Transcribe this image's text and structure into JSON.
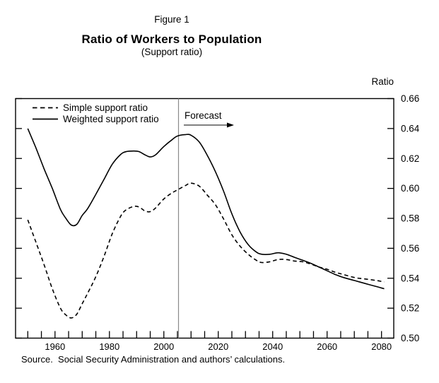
{
  "header": {
    "figure_label": "Figure 1",
    "title": "Ratio of Workers to Population",
    "subtitle": "(Support ratio)"
  },
  "axis_unit_label": "Ratio",
  "legend": {
    "simple_label": "Simple support ratio",
    "weighted_label": "Weighted support ratio"
  },
  "forecast_label": "Forecast",
  "source": "Source.  Social Security Administration and authors’ calculations.",
  "colors": {
    "line": "#000000",
    "forecast_divider": "#8a8a8a",
    "background": "#ffffff"
  },
  "chart_data": {
    "type": "line",
    "title": "Ratio of Workers to Population",
    "subtitle": "(Support ratio)",
    "ylabel": "Ratio",
    "grid": false,
    "legend_position": "top-left-inside",
    "x_domain": [
      1945.5,
      2084.5
    ],
    "ylim": [
      0.5,
      0.66
    ],
    "y_ticks": [
      0.5,
      0.52,
      0.54,
      0.56,
      0.58,
      0.6,
      0.62,
      0.64,
      0.66
    ],
    "x_tick_start": 1950,
    "x_tick_end": 2080,
    "x_tick_step": 5,
    "x_label_ticks": [
      1960,
      1980,
      2000,
      2020,
      2040,
      2060,
      2080
    ],
    "forecast_start": 2005,
    "series": [
      {
        "name": "Simple support ratio",
        "style": "dashed",
        "points": [
          [
            1950,
            0.579
          ],
          [
            1953,
            0.564
          ],
          [
            1956,
            0.549
          ],
          [
            1959,
            0.533
          ],
          [
            1962,
            0.52
          ],
          [
            1964,
            0.5155
          ],
          [
            1966,
            0.5135
          ],
          [
            1968,
            0.516
          ],
          [
            1970,
            0.523
          ],
          [
            1972,
            0.53
          ],
          [
            1975,
            0.541
          ],
          [
            1978,
            0.5545
          ],
          [
            1981,
            0.5695
          ],
          [
            1984,
            0.581
          ],
          [
            1986,
            0.5855
          ],
          [
            1989,
            0.588
          ],
          [
            1991,
            0.5875
          ],
          [
            1993,
            0.585
          ],
          [
            1995,
            0.5845
          ],
          [
            1997,
            0.587
          ],
          [
            2000,
            0.593
          ],
          [
            2003,
            0.597
          ],
          [
            2005,
            0.599
          ],
          [
            2008,
            0.602
          ],
          [
            2010,
            0.6035
          ],
          [
            2013,
            0.6015
          ],
          [
            2016,
            0.5955
          ],
          [
            2019,
            0.589
          ],
          [
            2022,
            0.5795
          ],
          [
            2025,
            0.569
          ],
          [
            2028,
            0.5615
          ],
          [
            2031,
            0.556
          ],
          [
            2034,
            0.552
          ],
          [
            2036,
            0.5505
          ],
          [
            2039,
            0.551
          ],
          [
            2042,
            0.5525
          ],
          [
            2045,
            0.5525
          ],
          [
            2048,
            0.5515
          ],
          [
            2051,
            0.551
          ],
          [
            2054,
            0.5495
          ],
          [
            2057,
            0.5475
          ],
          [
            2060,
            0.546
          ],
          [
            2063,
            0.544
          ],
          [
            2066,
            0.5425
          ],
          [
            2070,
            0.5405
          ],
          [
            2074,
            0.5395
          ],
          [
            2078,
            0.5385
          ],
          [
            2081,
            0.5375
          ]
        ]
      },
      {
        "name": "Weighted support ratio",
        "style": "solid",
        "points": [
          [
            1950,
            0.64
          ],
          [
            1953,
            0.627
          ],
          [
            1956,
            0.613
          ],
          [
            1959,
            0.6
          ],
          [
            1962,
            0.586
          ],
          [
            1964,
            0.58
          ],
          [
            1966,
            0.5755
          ],
          [
            1968,
            0.576
          ],
          [
            1970,
            0.582
          ],
          [
            1972,
            0.5865
          ],
          [
            1975,
            0.596
          ],
          [
            1978,
            0.606
          ],
          [
            1981,
            0.616
          ],
          [
            1984,
            0.6225
          ],
          [
            1986,
            0.6245
          ],
          [
            1989,
            0.625
          ],
          [
            1991,
            0.6245
          ],
          [
            1993,
            0.6225
          ],
          [
            1995,
            0.621
          ],
          [
            1997,
            0.6225
          ],
          [
            2000,
            0.628
          ],
          [
            2003,
            0.6325
          ],
          [
            2005,
            0.635
          ],
          [
            2008,
            0.636
          ],
          [
            2010,
            0.6355
          ],
          [
            2013,
            0.631
          ],
          [
            2016,
            0.622
          ],
          [
            2019,
            0.611
          ],
          [
            2022,
            0.598
          ],
          [
            2025,
            0.583
          ],
          [
            2028,
            0.571
          ],
          [
            2031,
            0.5625
          ],
          [
            2034,
            0.5575
          ],
          [
            2036,
            0.556
          ],
          [
            2039,
            0.556
          ],
          [
            2042,
            0.557
          ],
          [
            2045,
            0.556
          ],
          [
            2048,
            0.554
          ],
          [
            2051,
            0.552
          ],
          [
            2054,
            0.55
          ],
          [
            2057,
            0.5475
          ],
          [
            2060,
            0.545
          ],
          [
            2063,
            0.5425
          ],
          [
            2066,
            0.5405
          ],
          [
            2070,
            0.5385
          ],
          [
            2074,
            0.5365
          ],
          [
            2078,
            0.5345
          ],
          [
            2081,
            0.533
          ]
        ]
      }
    ]
  }
}
